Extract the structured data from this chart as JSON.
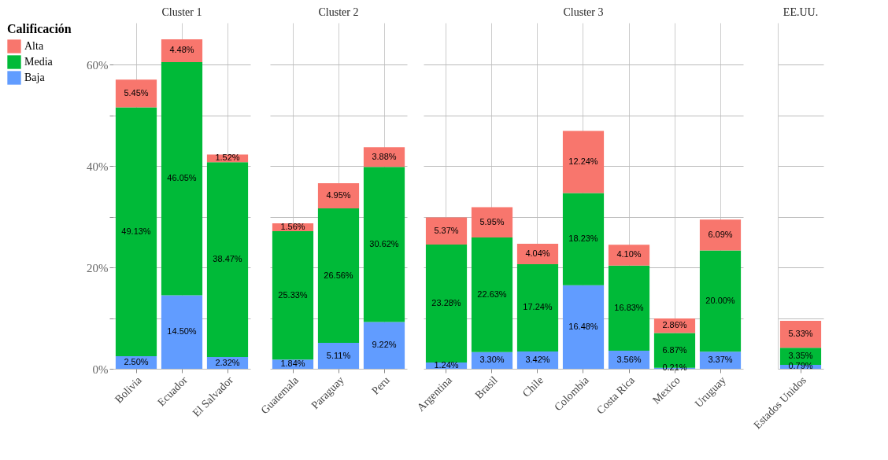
{
  "chart_data": [
    {
      "type": "bar",
      "title": "Cluster 1",
      "stacked": true,
      "categories": [
        "Bolivia",
        "Ecuador",
        "El Salvador"
      ],
      "legend": "left",
      "legend_title": "Calificación",
      "grid": true,
      "ylim": [
        0,
        68.3
      ],
      "yticks": [
        {
          "value": 0,
          "label": "0%"
        },
        {
          "value": 10,
          "label": null
        },
        {
          "value": 20,
          "label": "20%"
        },
        {
          "value": 30,
          "label": null
        },
        {
          "value": 40,
          "label": "40%"
        },
        {
          "value": 50,
          "label": null
        },
        {
          "value": 60,
          "label": "60%"
        }
      ],
      "series": [
        {
          "name": "Baja",
          "color": "#619cff",
          "values": [
            2.5,
            14.5,
            2.32
          ],
          "value_labels": [
            "2.50%",
            "14.50%",
            "2.32%"
          ]
        },
        {
          "name": "Media",
          "color": "#00ba38",
          "values": [
            49.13,
            46.05,
            38.47
          ],
          "value_labels": [
            "49.13%",
            "46.05%",
            "38.47%"
          ]
        },
        {
          "name": "Alta",
          "color": "#f8766d",
          "values": [
            5.45,
            4.48,
            1.52
          ],
          "value_labels": [
            "5.45%",
            "4.48%",
            "1.52%"
          ]
        }
      ]
    },
    {
      "type": "bar",
      "title": "Cluster 2",
      "stacked": true,
      "categories": [
        "Guatemala",
        "Paraguay",
        "Peru"
      ],
      "grid": true,
      "tick_labels": "x",
      "ylim": [
        0,
        68.3
      ],
      "yticks": [
        {
          "value": 0,
          "label": null
        },
        {
          "value": 10,
          "label": null
        },
        {
          "value": 20,
          "label": null
        },
        {
          "value": 30,
          "label": null
        },
        {
          "value": 40,
          "label": null
        },
        {
          "value": 50,
          "label": null
        },
        {
          "value": 60,
          "label": null
        }
      ],
      "series": [
        {
          "color": "#619cff",
          "values": [
            1.84,
            5.11,
            9.22
          ],
          "value_labels": [
            "1.84%",
            "5.11%",
            "9.22%"
          ]
        },
        {
          "color": "#00ba38",
          "values": [
            25.33,
            26.56,
            30.62
          ],
          "value_labels": [
            "25.33%",
            "26.56%",
            "30.62%"
          ]
        },
        {
          "color": "#f8766d",
          "values": [
            1.56,
            4.95,
            3.88
          ],
          "value_labels": [
            "1.56%",
            "4.95%",
            "3.88%"
          ]
        }
      ]
    },
    {
      "type": "bar",
      "title": "Cluster 3",
      "stacked": true,
      "categories": [
        "Argentina",
        "Brasil",
        "Chile",
        "Colombia",
        "Costa Rica",
        "Mexico",
        "Uruguay"
      ],
      "grid": true,
      "tick_labels": "x",
      "ylim": [
        0,
        68.3
      ],
      "yticks": [
        {
          "value": 0,
          "label": null
        },
        {
          "value": 10,
          "label": null
        },
        {
          "value": 20,
          "label": null
        },
        {
          "value": 30,
          "label": null
        },
        {
          "value": 40,
          "label": null
        },
        {
          "value": 50,
          "label": null
        },
        {
          "value": 60,
          "label": null
        }
      ],
      "series": [
        {
          "color": "#619cff",
          "values": [
            1.24,
            3.3,
            3.42,
            16.48,
            3.56,
            0.21,
            3.37
          ],
          "value_labels": [
            "1.24%",
            "3.30%",
            "3.42%",
            "16.48%",
            "3.56%",
            "0.21%",
            "3.37%"
          ]
        },
        {
          "color": "#00ba38",
          "values": [
            23.28,
            22.63,
            17.24,
            18.23,
            16.83,
            6.87,
            20.0
          ],
          "value_labels": [
            "23.28%",
            "22.63%",
            "17.24%",
            "18.23%",
            "16.83%",
            "6.87%",
            "20.00%"
          ]
        },
        {
          "color": "#f8766d",
          "values": [
            5.37,
            5.95,
            4.04,
            12.24,
            4.1,
            2.86,
            6.09
          ],
          "value_labels": [
            "5.37%",
            "5.95%",
            "4.04%",
            "12.24%",
            "4.10%",
            "2.86%",
            "6.09%"
          ]
        }
      ]
    },
    {
      "type": "bar",
      "title": "EE.UU.",
      "stacked": true,
      "categories": [
        "Estados Unidos"
      ],
      "grid": "y",
      "tick_labels": "x",
      "ylim": [
        0,
        68.3
      ],
      "yticks": [
        {
          "value": 0,
          "label": null
        },
        {
          "value": 10,
          "label": null
        },
        {
          "value": 20,
          "label": null
        },
        {
          "value": 30,
          "label": null
        },
        {
          "value": 40,
          "label": null
        },
        {
          "value": 50,
          "label": null
        },
        {
          "value": 60,
          "label": null
        }
      ],
      "series": [
        {
          "color": "#619cff",
          "values": [
            0.79
          ],
          "value_labels": [
            "0.79%"
          ]
        },
        {
          "color": "#00ba38",
          "values": [
            3.35
          ],
          "value_labels": [
            "3.35%"
          ]
        },
        {
          "color": "#f8766d",
          "values": [
            5.33
          ],
          "value_labels": [
            "5.33%"
          ]
        }
      ]
    }
  ]
}
